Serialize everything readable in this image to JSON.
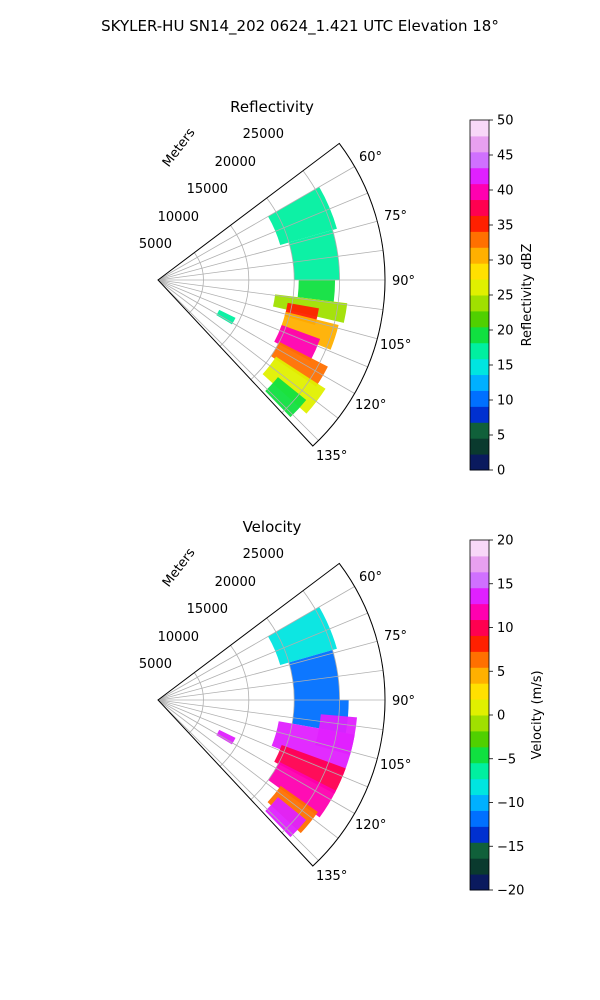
{
  "figure": {
    "suptitle": "SKYLER-HU  SN14_202  0624_1.421 UTC Elevation 18°"
  },
  "chart_data": [
    {
      "type": "heatmap",
      "projection": "polar-sector",
      "title": "Reflectivity",
      "radial_label": "Meters",
      "r_ticks": [
        5000,
        10000,
        15000,
        20000,
        25000
      ],
      "r_range": [
        0,
        25000
      ],
      "theta_range_deg": [
        53,
        137
      ],
      "theta_ticks": [
        "60°",
        "75°",
        "90°",
        "105°",
        "120°",
        "135°"
      ],
      "theta_tick_values": [
        60,
        75,
        90,
        105,
        120,
        135
      ],
      "grid": true,
      "colorbar": {
        "label": "Reflectivity dBZ",
        "range": [
          0,
          50
        ],
        "ticks": [
          "0",
          "5",
          "10",
          "15",
          "20",
          "25",
          "30",
          "35",
          "40",
          "45",
          "50"
        ],
        "tick_values": [
          0,
          5,
          10,
          15,
          20,
          25,
          30,
          35,
          40,
          45,
          50
        ],
        "colors": [
          "#0a1a5e",
          "#0a3a2e",
          "#10603a",
          "#0030d0",
          "#0070ff",
          "#00b0ff",
          "#00e5e0",
          "#00f0a0",
          "#10e040",
          "#50d000",
          "#a0e000",
          "#e0f000",
          "#ffe000",
          "#ffb000",
          "#ff7000",
          "#ff2000",
          "#ff0050",
          "#ff00b0",
          "#e020ff",
          "#d070ff",
          "#e8a0f0",
          "#f8d8f8"
        ]
      },
      "echo_regions": [
        {
          "theta": [
            60,
            74
          ],
          "r": [
            14000,
            20500
          ],
          "value": 18
        },
        {
          "theta": [
            74,
            90
          ],
          "r": [
            15000,
            20000
          ],
          "value": 16
        },
        {
          "theta": [
            90,
            97
          ],
          "r": [
            15500,
            19500
          ],
          "value": 20
        },
        {
          "theta": [
            97,
            103
          ],
          "r": [
            13000,
            21000
          ],
          "value": 24
        },
        {
          "theta": [
            100,
            106
          ],
          "r": [
            14500,
            18000
          ],
          "value": 36
        },
        {
          "theta": [
            104,
            112
          ],
          "r": [
            14500,
            20500
          ],
          "value": 30
        },
        {
          "theta": [
            110,
            118
          ],
          "r": [
            14500,
            19000
          ],
          "value": 40
        },
        {
          "theta": [
            117,
            124
          ],
          "r": [
            15000,
            21000
          ],
          "value": 32
        },
        {
          "theta": [
            123,
            132
          ],
          "r": [
            15500,
            22000
          ],
          "value": 26
        },
        {
          "theta": [
            129,
            136
          ],
          "r": [
            17000,
            21000
          ],
          "value": 20
        },
        {
          "theta": [
            116,
            121
          ],
          "r": [
            7500,
            9500
          ],
          "value": 16
        }
      ]
    },
    {
      "type": "heatmap",
      "projection": "polar-sector",
      "title": "Velocity",
      "radial_label": "Meters",
      "r_ticks": [
        5000,
        10000,
        15000,
        20000,
        25000
      ],
      "r_range": [
        0,
        25000
      ],
      "theta_range_deg": [
        53,
        137
      ],
      "theta_ticks": [
        "60°",
        "75°",
        "90°",
        "105°",
        "120°",
        "135°"
      ],
      "theta_tick_values": [
        60,
        75,
        90,
        105,
        120,
        135
      ],
      "grid": true,
      "colorbar": {
        "label": "Velocity (m/s)",
        "range": [
          -20,
          20
        ],
        "ticks": [
          "−20",
          "−15",
          "−10",
          "−5",
          "0",
          "5",
          "10",
          "15",
          "20"
        ],
        "tick_values": [
          -20,
          -15,
          -10,
          -5,
          0,
          5,
          10,
          15,
          20
        ],
        "colors": [
          "#0a1a5e",
          "#0a3a2e",
          "#10603a",
          "#0030d0",
          "#0070ff",
          "#00b0ff",
          "#00e5e0",
          "#00f0a0",
          "#10e040",
          "#50d000",
          "#a0e000",
          "#e0f000",
          "#ffe000",
          "#ffb000",
          "#ff7000",
          "#ff2000",
          "#ff0050",
          "#ff00b0",
          "#e020ff",
          "#d070ff",
          "#e8a0f0",
          "#f8d8f8"
        ]
      },
      "echo_regions": [
        {
          "theta": [
            60,
            74
          ],
          "r": [
            14000,
            20500
          ],
          "value": -9
        },
        {
          "theta": [
            74,
            90
          ],
          "r": [
            15000,
            20000
          ],
          "value": -12
        },
        {
          "theta": [
            90,
            100
          ],
          "r": [
            15000,
            21000
          ],
          "value": -12
        },
        {
          "theta": [
            95,
            106
          ],
          "r": [
            18000,
            22000
          ],
          "value": 14
        },
        {
          "theta": [
            100,
            112
          ],
          "r": [
            13500,
            22000
          ],
          "value": 13
        },
        {
          "theta": [
            110,
            118
          ],
          "r": [
            14500,
            22000
          ],
          "value": 10
        },
        {
          "theta": [
            117,
            126
          ],
          "r": [
            15000,
            22000
          ],
          "value": 12
        },
        {
          "theta": [
            125,
            133
          ],
          "r": [
            16500,
            21500
          ],
          "value": 6
        },
        {
          "theta": [
            129,
            136
          ],
          "r": [
            17000,
            21000
          ],
          "value": 13
        },
        {
          "theta": [
            116,
            121
          ],
          "r": [
            7500,
            9500
          ],
          "value": 14
        }
      ]
    }
  ]
}
